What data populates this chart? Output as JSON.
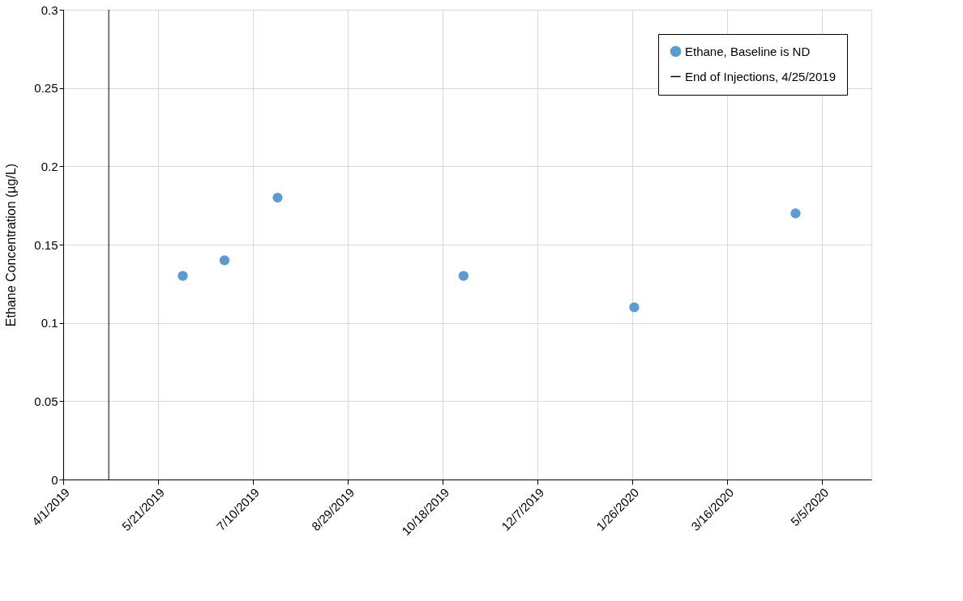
{
  "chart_data": {
    "type": "scatter",
    "ylabel": "Ethane Concentration (µg/L)",
    "x": [
      "2019-06-03",
      "2019-06-25",
      "2019-07-23",
      "2019-10-29",
      "2020-01-27",
      "2020-04-21"
    ],
    "series": [
      {
        "name": "Ethane, Baseline is ND",
        "color": "#5b9bd5",
        "values": [
          0.13,
          0.14,
          0.18,
          0.13,
          0.11,
          0.17
        ]
      }
    ],
    "xlim": [
      "2019-04-01",
      "2020-05-31"
    ],
    "xticks": [
      {
        "value": "2019-04-01",
        "label": "4/1/2019"
      },
      {
        "value": "2019-05-21",
        "label": "5/21/2019"
      },
      {
        "value": "2019-07-10",
        "label": "7/10/2019"
      },
      {
        "value": "2019-08-29",
        "label": "8/29/2019"
      },
      {
        "value": "2019-10-18",
        "label": "10/18/2019"
      },
      {
        "value": "2019-12-07",
        "label": "12/7/2019"
      },
      {
        "value": "2020-01-26",
        "label": "1/26/2020"
      },
      {
        "value": "2020-03-16",
        "label": "3/16/2020"
      },
      {
        "value": "2020-05-05",
        "label": "5/5/2020"
      }
    ],
    "ylim": [
      0,
      0.3
    ],
    "yticks": [
      0,
      0.05,
      0.1,
      0.15,
      0.2,
      0.25,
      0.3
    ],
    "ref_lines": [
      {
        "axis": "x",
        "value": "2019-04-25",
        "label": "End of Injections, 4/25/2019",
        "color": "#000000"
      }
    ],
    "grid": true,
    "legend": "top right",
    "marker": "circle"
  }
}
